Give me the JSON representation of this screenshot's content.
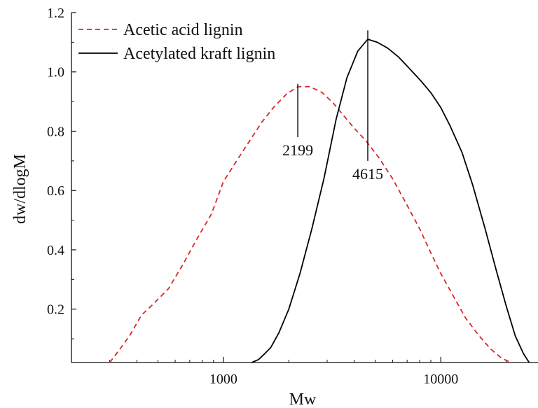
{
  "chart_data": {
    "type": "line",
    "xlabel": "Mw",
    "ylabel": "dw/dlogM",
    "xscale": "log",
    "xlim": [
      200,
      28000
    ],
    "ylim": [
      0.02,
      1.2
    ],
    "x_ticks": [
      {
        "value": 1000,
        "label": "1000"
      },
      {
        "value": 10000,
        "label": "10000"
      }
    ],
    "y_ticks": [
      {
        "value": 0.2,
        "label": "0.2"
      },
      {
        "value": 0.4,
        "label": "0.4"
      },
      {
        "value": 0.6,
        "label": "0.6"
      },
      {
        "value": 0.8,
        "label": "0.8"
      },
      {
        "value": 1.0,
        "label": "1.0"
      },
      {
        "value": 1.2,
        "label": "1.2"
      }
    ],
    "legend_position": "top-left",
    "series": [
      {
        "name": "Acetic acid lignin",
        "color": "#d42a2a",
        "style": "dashed",
        "x": [
          300,
          330,
          370,
          420,
          480,
          560,
          650,
          760,
          880,
          1000,
          1150,
          1300,
          1500,
          1700,
          1950,
          2199,
          2500,
          2850,
          3200,
          3600,
          4000,
          4500,
          5200,
          6000,
          7000,
          8000,
          9000,
          10000,
          11500,
          13000,
          15000,
          17000,
          19000,
          21000
        ],
        "y": [
          0.02,
          0.06,
          0.11,
          0.18,
          0.22,
          0.27,
          0.35,
          0.44,
          0.52,
          0.63,
          0.7,
          0.76,
          0.83,
          0.88,
          0.925,
          0.95,
          0.95,
          0.93,
          0.895,
          0.85,
          0.81,
          0.77,
          0.71,
          0.64,
          0.55,
          0.47,
          0.39,
          0.32,
          0.24,
          0.17,
          0.11,
          0.065,
          0.035,
          0.02
        ]
      },
      {
        "name": "Acetylated kraft lignin",
        "color": "#000000",
        "style": "solid",
        "x": [
          1350,
          1450,
          1550,
          1650,
          1800,
          2000,
          2250,
          2550,
          2900,
          3300,
          3700,
          4150,
          4615,
          5100,
          5700,
          6400,
          7200,
          8100,
          9000,
          10000,
          11000,
          12500,
          14000,
          16000,
          18000,
          20000,
          22000,
          24000,
          25500
        ],
        "y": [
          0.02,
          0.03,
          0.05,
          0.07,
          0.12,
          0.2,
          0.32,
          0.47,
          0.64,
          0.84,
          0.98,
          1.07,
          1.11,
          1.1,
          1.08,
          1.05,
          1.01,
          0.97,
          0.93,
          0.88,
          0.82,
          0.73,
          0.62,
          0.47,
          0.33,
          0.21,
          0.11,
          0.05,
          0.02
        ]
      }
    ],
    "annotations": [
      {
        "text": "2199",
        "x": 2199,
        "line_y": [
          0.78,
          0.96
        ]
      },
      {
        "text": "4615",
        "x": 4615,
        "line_y": [
          0.7,
          1.14
        ]
      }
    ]
  }
}
